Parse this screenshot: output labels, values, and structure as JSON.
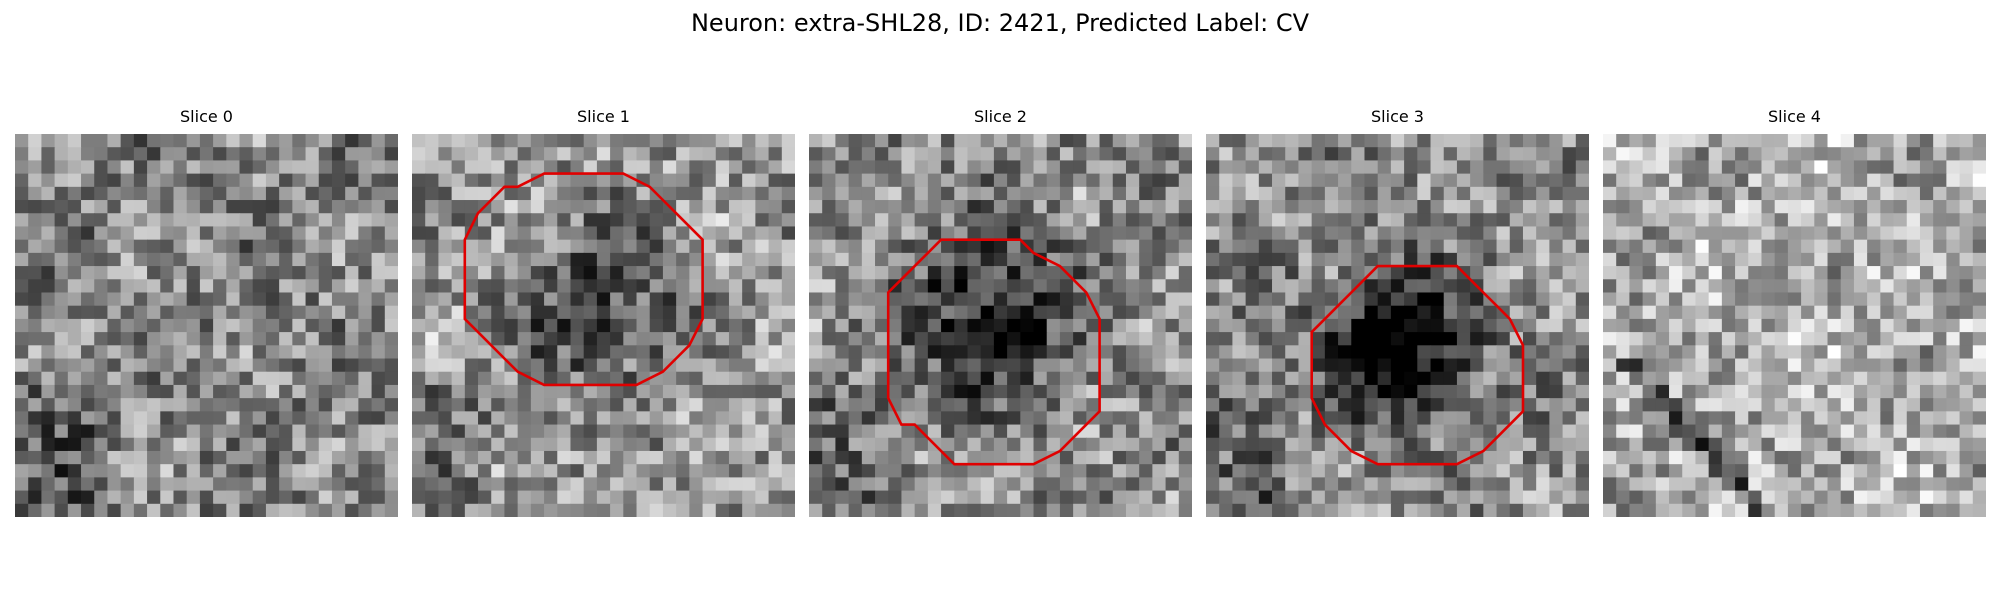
{
  "figure": {
    "title": "Neuron: extra-SHL28, ID: 2421, Predicted Label: CV"
  },
  "panels": [
    {
      "title": "Slice 0",
      "has_contour": false,
      "blob_darkness": 0.0,
      "blob_center": [
        0.5,
        0.5
      ],
      "blob_radius": 0.3,
      "streak": false,
      "brightness": 0.52
    },
    {
      "title": "Slice 1",
      "has_contour": true,
      "blob_darkness": 0.35,
      "blob_center": [
        0.5,
        0.45
      ],
      "blob_radius": 0.28,
      "streak": false,
      "brightness": 0.6
    },
    {
      "title": "Slice 2",
      "has_contour": true,
      "blob_darkness": 0.5,
      "blob_center": [
        0.48,
        0.48
      ],
      "blob_radius": 0.25,
      "streak": false,
      "brightness": 0.55
    },
    {
      "title": "Slice 3",
      "has_contour": true,
      "blob_darkness": 0.75,
      "blob_center": [
        0.5,
        0.55
      ],
      "blob_radius": 0.22,
      "streak": false,
      "brightness": 0.55
    },
    {
      "title": "Slice 4",
      "has_contour": false,
      "blob_darkness": 0.0,
      "blob_center": [
        0.5,
        0.5
      ],
      "blob_radius": 0.3,
      "streak": true,
      "brightness": 0.68
    }
  ],
  "colors": {
    "contour": "#e00000",
    "background": "#ffffff"
  }
}
